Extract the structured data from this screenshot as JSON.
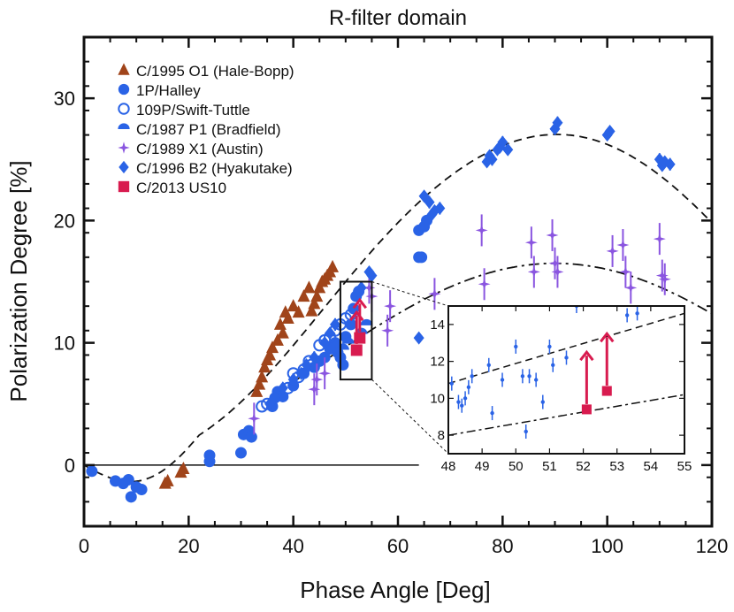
{
  "chart_data": {
    "type": "scatter",
    "title": "R-filter domain",
    "xlabel": "Phase Angle [Deg]",
    "ylabel": "Polarization Degree [%]",
    "xlim": [
      0,
      120
    ],
    "ylim": [
      -5,
      35
    ],
    "xticks": [
      0,
      20,
      40,
      60,
      80,
      100,
      120
    ],
    "yticks": [
      0,
      10,
      20,
      30
    ],
    "zero_line": {
      "x_range": [
        0,
        64
      ]
    },
    "series": [
      {
        "name": "C/1995 O1 (Hale-Bopp)",
        "marker": "triangle",
        "color": "#a0441a",
        "points": [
          [
            15.5,
            -1.5
          ],
          [
            16,
            -1.3
          ],
          [
            18.5,
            -0.6
          ],
          [
            19,
            -0.3
          ],
          [
            33,
            6.0
          ],
          [
            33.5,
            6.6
          ],
          [
            34,
            7.2
          ],
          [
            34.5,
            8.0
          ],
          [
            35,
            8.6
          ],
          [
            35.5,
            9.0
          ],
          [
            36,
            9.6
          ],
          [
            37,
            10.2
          ],
          [
            37.5,
            11.5
          ],
          [
            38,
            10.8
          ],
          [
            38.5,
            12.5
          ],
          [
            39,
            12.0
          ],
          [
            40,
            13.0
          ],
          [
            41,
            12.5
          ],
          [
            42,
            13.8
          ],
          [
            43,
            14.5
          ],
          [
            43.5,
            12.6
          ],
          [
            44,
            13.2
          ],
          [
            44.5,
            13.8
          ],
          [
            45,
            14.5
          ],
          [
            45.5,
            15.0
          ],
          [
            46,
            15.2
          ],
          [
            46.5,
            15.5
          ],
          [
            47,
            15.8
          ],
          [
            47.5,
            16.2
          ]
        ]
      },
      {
        "name": "1P/Halley",
        "marker": "circle",
        "color": "#2a63e6",
        "points": [
          [
            1.5,
            -0.5
          ],
          [
            6,
            -1.3
          ],
          [
            7.5,
            -1.5
          ],
          [
            8.5,
            -1.2
          ],
          [
            9,
            -2.6
          ],
          [
            10,
            -1.8
          ],
          [
            11,
            -2.0
          ],
          [
            24,
            0.3
          ],
          [
            24,
            0.8
          ],
          [
            30,
            1.0
          ],
          [
            30.5,
            2.5
          ],
          [
            31.5,
            2.8
          ],
          [
            32,
            2.3
          ],
          [
            36,
            4.8
          ],
          [
            36.5,
            5.5
          ],
          [
            37,
            6.0
          ],
          [
            38,
            5.6
          ],
          [
            40,
            6.5
          ],
          [
            42,
            7.5
          ],
          [
            44,
            8.0
          ],
          [
            45,
            8.5
          ],
          [
            46,
            8.8
          ],
          [
            47,
            9.5
          ],
          [
            48,
            10.0
          ],
          [
            48.5,
            9.2
          ],
          [
            49,
            8.8
          ],
          [
            49.5,
            8.2
          ],
          [
            50,
            10.5
          ],
          [
            51,
            11.5
          ],
          [
            51.5,
            12.8
          ],
          [
            52,
            13.8
          ],
          [
            52.5,
            14.2
          ],
          [
            64,
            17.0
          ],
          [
            64.5,
            17.0
          ],
          [
            64,
            19.2
          ],
          [
            65,
            19.5
          ],
          [
            65.5,
            20.0
          ]
        ]
      },
      {
        "name": "109P/Swift-Tuttle",
        "marker": "circle-open",
        "color": "#2a63e6",
        "points": [
          [
            34,
            4.8
          ],
          [
            35,
            5.0
          ],
          [
            39,
            6.3
          ],
          [
            40,
            7.5
          ],
          [
            41,
            7.2
          ],
          [
            42,
            7.8
          ],
          [
            43,
            8.5
          ],
          [
            43.5,
            8.2
          ],
          [
            45,
            9.8
          ],
          [
            46,
            10.2
          ],
          [
            47,
            10.5
          ],
          [
            48,
            11.0
          ],
          [
            49,
            11.5
          ],
          [
            50,
            12.0
          ],
          [
            51,
            12.3
          ]
        ]
      },
      {
        "name": "C/1987 P1 (Bradfield)",
        "marker": "half-circle",
        "color": "#2a63e6",
        "points": [
          [
            49.5,
            9.5
          ],
          [
            50.5,
            10.0
          ],
          [
            53,
            10.8
          ],
          [
            54,
            11.5
          ]
        ]
      },
      {
        "name": "C/1989 X1 (Austin)",
        "marker": "star",
        "color": "#8a55e0",
        "points": [
          [
            32.5,
            3.8
          ],
          [
            44,
            6.2
          ],
          [
            44.5,
            7.0
          ],
          [
            46,
            7.5
          ],
          [
            54.5,
            14.5
          ],
          [
            55,
            13.8
          ],
          [
            58,
            11.0
          ],
          [
            58.5,
            13.0
          ],
          [
            67,
            14.0
          ],
          [
            76,
            19.2
          ],
          [
            76.5,
            14.8
          ],
          [
            85.5,
            18.2
          ],
          [
            86,
            15.8
          ],
          [
            89.5,
            18.8
          ],
          [
            90,
            16.5
          ],
          [
            90.5,
            15.8
          ],
          [
            101,
            17.5
          ],
          [
            103,
            18.0
          ],
          [
            103.5,
            15.8
          ],
          [
            104.5,
            14.5
          ],
          [
            110,
            18.5
          ],
          [
            110.5,
            15.5
          ],
          [
            111,
            15.2
          ]
        ]
      },
      {
        "name": "C/1996 B2 (Hyakutake)",
        "marker": "diamond",
        "color": "#2a63e6",
        "points": [
          [
            35.5,
            5.0
          ],
          [
            36.5,
            5.5
          ],
          [
            38,
            6.3
          ],
          [
            40,
            7.0
          ],
          [
            41.5,
            7.5
          ],
          [
            42.5,
            8.2
          ],
          [
            44,
            8.8
          ],
          [
            46,
            10.0
          ],
          [
            47,
            10.8
          ],
          [
            48,
            11.5
          ],
          [
            53,
            14.5
          ],
          [
            54.5,
            15.8
          ],
          [
            55,
            15.5
          ],
          [
            64,
            10.4
          ],
          [
            65,
            22.0
          ],
          [
            66,
            21.5
          ],
          [
            66.5,
            20.5
          ],
          [
            67,
            20.8
          ],
          [
            68,
            21.0
          ],
          [
            77,
            24.8
          ],
          [
            77.5,
            25.3
          ],
          [
            78,
            25.0
          ],
          [
            79,
            25.8
          ],
          [
            79.5,
            26.0
          ],
          [
            80,
            26.4
          ],
          [
            81,
            25.8
          ],
          [
            90,
            27.5
          ],
          [
            90.5,
            28.0
          ],
          [
            100,
            27.0
          ],
          [
            100.5,
            27.3
          ],
          [
            110,
            25.0
          ],
          [
            110.5,
            24.5
          ],
          [
            111,
            24.8
          ],
          [
            112,
            24.6
          ]
        ]
      },
      {
        "name": "C/2013 US10",
        "marker": "square",
        "color": "#d81b4f",
        "points": [
          [
            52.1,
            9.4
          ],
          [
            52.7,
            10.4
          ]
        ],
        "lower_limit_arrows": [
          [
            52.1,
            9.4,
            12.5
          ],
          [
            52.7,
            10.4,
            13.5
          ]
        ]
      }
    ],
    "fit_curves": [
      {
        "style": "dashed",
        "shape": "upper-model",
        "peak": [
          96,
          27.2
        ]
      },
      {
        "style": "dash-dot",
        "shape": "lower-model",
        "peak": [
          96,
          16.5
        ]
      }
    ],
    "inset": {
      "xlim": [
        48,
        55
      ],
      "ylim": [
        7,
        15
      ],
      "xticks": [
        48,
        49,
        50,
        51,
        52,
        53,
        54,
        55
      ],
      "yticks": [
        8,
        10,
        12,
        14
      ],
      "zoom_box": {
        "x": [
          49,
          55
        ],
        "y": [
          7,
          15
        ]
      },
      "dashed_line": [
        [
          48,
          10.8
        ],
        [
          55,
          14.6
        ]
      ],
      "dashdot_line": [
        [
          48,
          8.0
        ],
        [
          55,
          10.2
        ]
      ],
      "points": [
        [
          48.1,
          10.8
        ],
        [
          48.3,
          9.8
        ],
        [
          48.4,
          9.6
        ],
        [
          48.5,
          10.0
        ],
        [
          48.6,
          10.6
        ],
        [
          48.7,
          11.2
        ],
        [
          49.2,
          11.8
        ],
        [
          49.3,
          9.2
        ],
        [
          49.6,
          11.0
        ],
        [
          50,
          12.8
        ],
        [
          50.2,
          11.2
        ],
        [
          50.3,
          8.2
        ],
        [
          50.4,
          11.2
        ],
        [
          50.6,
          11.0
        ],
        [
          50.8,
          9.8
        ],
        [
          51,
          12.8
        ],
        [
          51.1,
          11.8
        ],
        [
          51.5,
          12.2
        ],
        [
          51.8,
          15.0
        ],
        [
          53.3,
          14.5
        ],
        [
          53.6,
          14.6
        ]
      ]
    }
  }
}
